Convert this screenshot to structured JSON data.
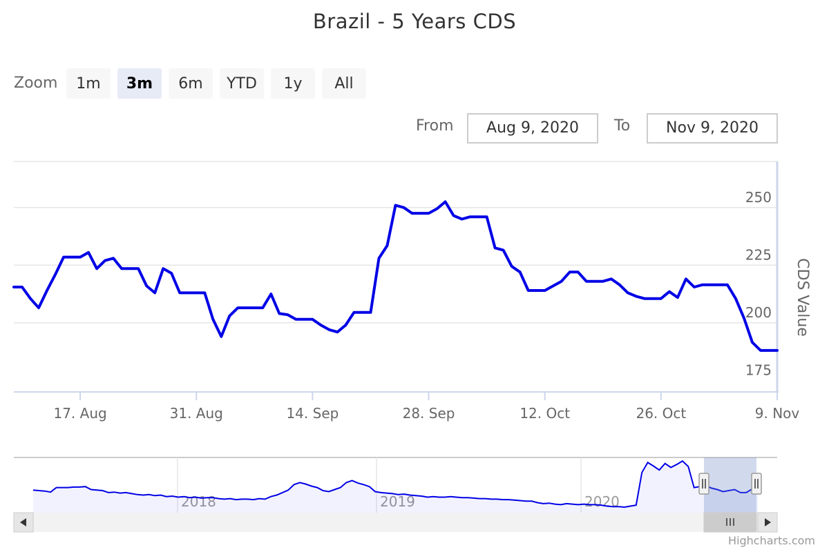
{
  "chart_data": {
    "type": "line",
    "title": "Brazil - 5 Years CDS",
    "ylabel": "CDS Value",
    "ylim": [
      170,
      270
    ],
    "yticks": [
      175,
      200,
      225,
      250
    ],
    "xlim": [
      "2020-08-09",
      "2020-11-09"
    ],
    "xticks": [
      {
        "date": "2020-08-17",
        "label": "17. Aug"
      },
      {
        "date": "2020-08-31",
        "label": "31. Aug"
      },
      {
        "date": "2020-09-14",
        "label": "14. Sep"
      },
      {
        "date": "2020-09-28",
        "label": "28. Sep"
      },
      {
        "date": "2020-10-12",
        "label": "12. Oct"
      },
      {
        "date": "2020-10-26",
        "label": "26. Oct"
      },
      {
        "date": "2020-11-09",
        "label": "9. Nov"
      }
    ],
    "grid": true,
    "legend": "none",
    "line_color": "#0000e6",
    "series": [
      {
        "x": [
          "2020-08-09",
          "2020-08-10",
          "2020-08-11",
          "2020-08-12",
          "2020-08-13",
          "2020-08-14",
          "2020-08-15",
          "2020-08-16",
          "2020-08-17",
          "2020-08-18",
          "2020-08-19",
          "2020-08-20",
          "2020-08-21",
          "2020-08-22",
          "2020-08-23",
          "2020-08-24",
          "2020-08-25",
          "2020-08-26",
          "2020-08-27",
          "2020-08-28",
          "2020-08-29",
          "2020-08-30",
          "2020-08-31",
          "2020-09-01",
          "2020-09-02",
          "2020-09-03",
          "2020-09-04",
          "2020-09-05",
          "2020-09-06",
          "2020-09-07",
          "2020-09-08",
          "2020-09-09",
          "2020-09-10",
          "2020-09-11",
          "2020-09-12",
          "2020-09-13",
          "2020-09-14",
          "2020-09-15",
          "2020-09-16",
          "2020-09-17",
          "2020-09-18",
          "2020-09-19",
          "2020-09-20",
          "2020-09-21",
          "2020-09-22",
          "2020-09-23",
          "2020-09-24",
          "2020-09-25",
          "2020-09-26",
          "2020-09-27",
          "2020-09-28",
          "2020-09-29",
          "2020-09-30",
          "2020-10-01",
          "2020-10-02",
          "2020-10-03",
          "2020-10-04",
          "2020-10-05",
          "2020-10-06",
          "2020-10-07",
          "2020-10-08",
          "2020-10-09",
          "2020-10-10",
          "2020-10-11",
          "2020-10-12",
          "2020-10-13",
          "2020-10-14",
          "2020-10-15",
          "2020-10-16",
          "2020-10-17",
          "2020-10-18",
          "2020-10-19",
          "2020-10-20",
          "2020-10-21",
          "2020-10-22",
          "2020-10-23",
          "2020-10-24",
          "2020-10-25",
          "2020-10-26",
          "2020-10-27",
          "2020-10-28",
          "2020-10-29",
          "2020-10-30",
          "2020-10-31",
          "2020-11-01",
          "2020-11-02",
          "2020-11-03",
          "2020-11-04",
          "2020-11-05",
          "2020-11-06",
          "2020-11-07",
          "2020-11-08",
          "2020-11-09"
        ],
        "y": [
          215.5,
          215.5,
          210.5,
          206.5,
          214,
          221,
          228.5,
          228.5,
          228.5,
          230.5,
          223.5,
          227,
          228,
          223.5,
          223.5,
          223.5,
          216,
          213,
          223.5,
          221.5,
          213,
          213,
          213,
          213,
          201.5,
          194,
          203,
          206.5,
          206.5,
          206.5,
          206.5,
          212.5,
          204,
          203.5,
          201.5,
          201.5,
          201.5,
          199,
          197,
          196,
          199,
          204.5,
          204.5,
          204.5,
          228,
          233.5,
          251,
          250,
          247.5,
          247.5,
          247.5,
          249.5,
          252.5,
          246.5,
          245,
          246,
          246,
          246,
          232.5,
          231.5,
          224.5,
          222,
          214,
          214,
          214,
          216,
          218,
          222,
          222,
          218,
          218,
          218,
          219,
          216.5,
          213,
          211.5,
          210.5,
          210.5,
          210.5,
          213.5,
          211,
          219,
          215.5,
          216.5,
          216.5,
          216.5,
          216.5,
          210.5,
          202,
          191.5,
          188,
          188,
          188
        ]
      }
    ]
  },
  "navigator": {
    "labels": [
      "2018",
      "2019",
      "2020"
    ],
    "profile": [
      65,
      64,
      63,
      61,
      70,
      70,
      70,
      71,
      71,
      72,
      66,
      65,
      64,
      60,
      61,
      59,
      60,
      58,
      56,
      55,
      56,
      54,
      55,
      52,
      53,
      51,
      52,
      50,
      51,
      49,
      50,
      50,
      48,
      47,
      48,
      46,
      47,
      47,
      46,
      48,
      47,
      52,
      55,
      60,
      65,
      76,
      80,
      77,
      73,
      70,
      64,
      62,
      66,
      70,
      80,
      84,
      79,
      76,
      72,
      62,
      60,
      59,
      58,
      56,
      57,
      55,
      54,
      53,
      51,
      52,
      51,
      51,
      52,
      51,
      50,
      50,
      49,
      48,
      48,
      47,
      47,
      46,
      46,
      45,
      44,
      43,
      43,
      40,
      38,
      39,
      37,
      36,
      38,
      37,
      36,
      37,
      36,
      36,
      35,
      33,
      32,
      32,
      31,
      33,
      35,
      100,
      120,
      113,
      105,
      118,
      110,
      116,
      123,
      112,
      70,
      72,
      74,
      69,
      66,
      62,
      64,
      66,
      60,
      60,
      67,
      64
    ],
    "selection_start": 0.922,
    "selection_end": 0.99
  },
  "ui": {
    "zoom_label": "Zoom",
    "zoom_buttons": [
      "1m",
      "3m",
      "6m",
      "YTD",
      "1y",
      "All"
    ],
    "active_zoom": "3m",
    "from_label": "From",
    "from_value": "Aug 9, 2020",
    "to_label": "To",
    "to_value": "Nov 9, 2020",
    "credits": "Highcharts.com",
    "scroll_left_icon": "arrow-left-icon",
    "scroll_right_icon": "arrow-right-icon",
    "scroll_grip_icon": "grip-lines-icon"
  }
}
